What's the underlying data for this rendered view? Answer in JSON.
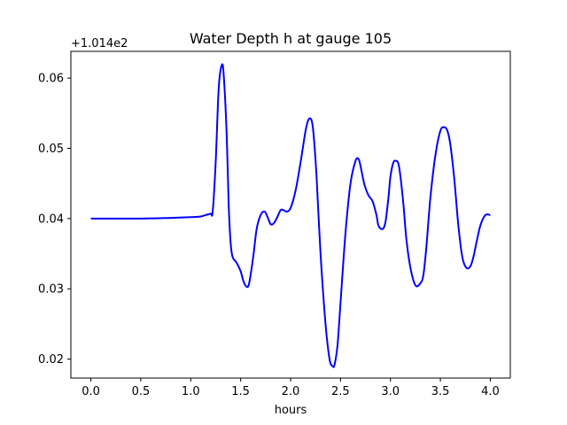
{
  "chart_data": {
    "type": "line",
    "title": "Water Depth h at gauge 105",
    "xlabel": "hours",
    "ylabel": "",
    "y_offset_label": "+1.014e2",
    "xlim": [
      -0.2,
      4.2
    ],
    "ylim": [
      0.0173,
      0.0638
    ],
    "xticks": [
      0.0,
      0.5,
      1.0,
      1.5,
      2.0,
      2.5,
      3.0,
      3.5,
      4.0
    ],
    "xtick_labels": [
      "0.0",
      "0.5",
      "1.0",
      "1.5",
      "2.0",
      "2.5",
      "3.0",
      "3.5",
      "4.0"
    ],
    "yticks": [
      0.02,
      0.03,
      0.04,
      0.05,
      0.06
    ],
    "ytick_labels": [
      "0.02",
      "0.03",
      "0.04",
      "0.05",
      "0.06"
    ],
    "grid": false,
    "line_color": "#0000ff",
    "series": [
      {
        "x": [
          0.0,
          0.5,
          0.8,
          1.0,
          1.1,
          1.15,
          1.2,
          1.22,
          1.25,
          1.28,
          1.31,
          1.33,
          1.36,
          1.38,
          1.4,
          1.42,
          1.46,
          1.5,
          1.53,
          1.56,
          1.58,
          1.6,
          1.63,
          1.66,
          1.7,
          1.74,
          1.77,
          1.8,
          1.83,
          1.86,
          1.9,
          1.93,
          1.96,
          2.0,
          2.05,
          2.1,
          2.15,
          2.18,
          2.21,
          2.23,
          2.26,
          2.3,
          2.35,
          2.39,
          2.42,
          2.44,
          2.47,
          2.5,
          2.55,
          2.6,
          2.65,
          2.68,
          2.7,
          2.74,
          2.78,
          2.82,
          2.86,
          2.88,
          2.92,
          2.95,
          2.98,
          3.0,
          3.03,
          3.06,
          3.08,
          3.1,
          3.13,
          3.16,
          3.2,
          3.25,
          3.3,
          3.33,
          3.36,
          3.4,
          3.45,
          3.5,
          3.54,
          3.57,
          3.6,
          3.64,
          3.68,
          3.72,
          3.76,
          3.8,
          3.83,
          3.86,
          3.9,
          3.95,
          4.0
        ],
        "y": [
          0.04,
          0.04,
          0.0401,
          0.0402,
          0.0403,
          0.0405,
          0.0407,
          0.041,
          0.048,
          0.0585,
          0.0618,
          0.0605,
          0.052,
          0.042,
          0.0365,
          0.0345,
          0.0337,
          0.0325,
          0.031,
          0.0303,
          0.0305,
          0.032,
          0.035,
          0.0385,
          0.0405,
          0.041,
          0.0402,
          0.0392,
          0.0393,
          0.04,
          0.0412,
          0.0412,
          0.041,
          0.0415,
          0.044,
          0.048,
          0.0525,
          0.0541,
          0.054,
          0.052,
          0.046,
          0.035,
          0.025,
          0.02,
          0.019,
          0.0192,
          0.022,
          0.028,
          0.038,
          0.045,
          0.0482,
          0.0485,
          0.0475,
          0.0448,
          0.0433,
          0.0425,
          0.0405,
          0.039,
          0.0385,
          0.0395,
          0.043,
          0.046,
          0.048,
          0.0482,
          0.0478,
          0.046,
          0.042,
          0.037,
          0.033,
          0.0305,
          0.0308,
          0.032,
          0.036,
          0.043,
          0.049,
          0.0525,
          0.053,
          0.0525,
          0.0505,
          0.0455,
          0.039,
          0.0345,
          0.033,
          0.0332,
          0.0345,
          0.0365,
          0.039,
          0.0405,
          0.0405
        ]
      }
    ]
  }
}
